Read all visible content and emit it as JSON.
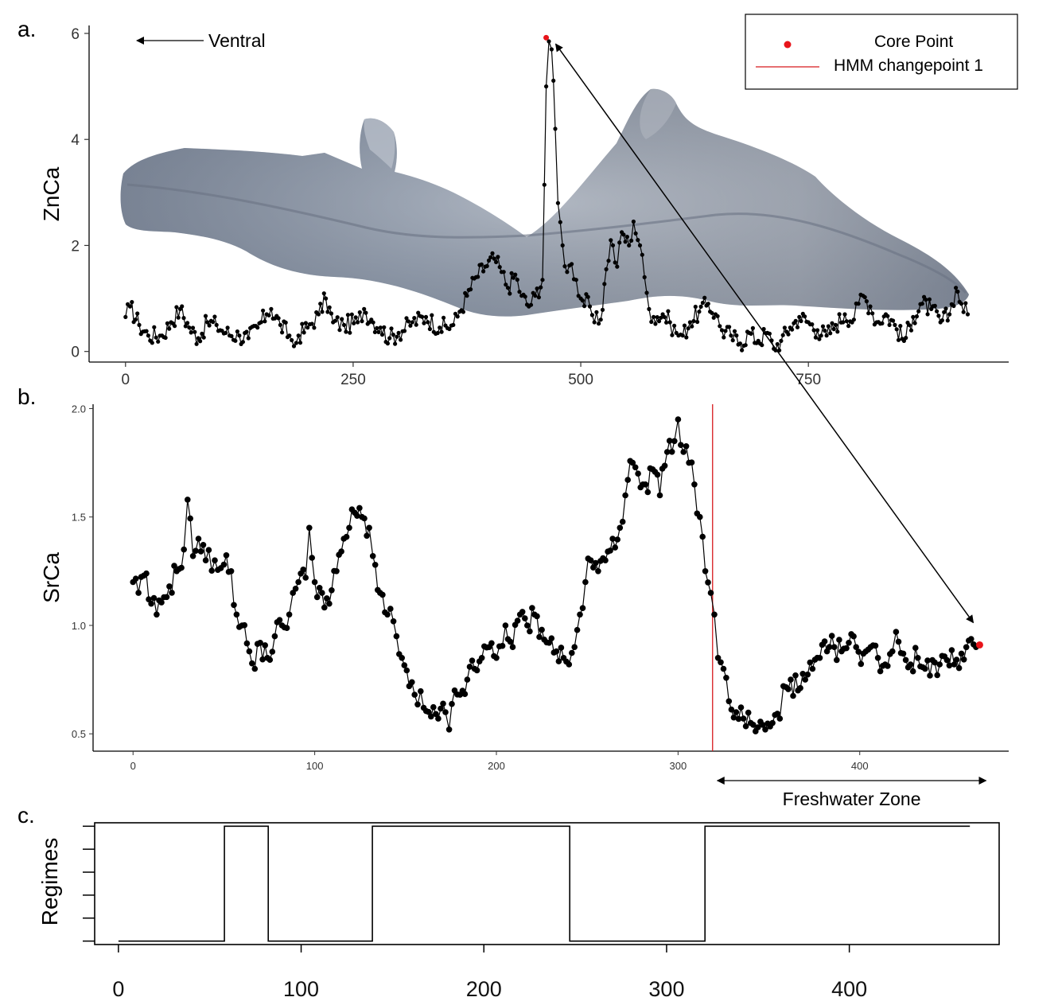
{
  "figure": {
    "panel_labels": [
      "a.",
      "b.",
      "c."
    ],
    "annotations": {
      "ventral": "Ventral",
      "freshwater_zone": "Freshwater Zone"
    },
    "legend": {
      "core_point": "Core Point",
      "hmm_changepoint": "HMM changepoint 1"
    }
  },
  "colors": {
    "series": "#000000",
    "core_point": "#e8141a",
    "changepoint": "#d7191c",
    "otolith": "#8c98a8"
  },
  "chart_data": [
    {
      "type": "line",
      "panel": "a.",
      "ylabel": "ZnCa",
      "xlabel": "",
      "xlim": [
        -40,
        970
      ],
      "ylim": [
        -0.2,
        6.15
      ],
      "xticks": [
        0,
        250,
        500,
        750
      ],
      "yticks": [
        0,
        2,
        4,
        6
      ],
      "legend_position": "top-right",
      "background_image": "otolith-photo",
      "core_point": {
        "x": 462,
        "y": 5.92
      },
      "key_points": [
        [
          0,
          0.65
        ],
        [
          5,
          0.85
        ],
        [
          15,
          0.5
        ],
        [
          25,
          0.3
        ],
        [
          40,
          0.3
        ],
        [
          50,
          0.55
        ],
        [
          60,
          0.8
        ],
        [
          70,
          0.45
        ],
        [
          80,
          0.25
        ],
        [
          90,
          0.55
        ],
        [
          100,
          0.5
        ],
        [
          110,
          0.35
        ],
        [
          125,
          0.3
        ],
        [
          135,
          0.25
        ],
        [
          145,
          0.45
        ],
        [
          155,
          0.7
        ],
        [
          160,
          0.8
        ],
        [
          170,
          0.5
        ],
        [
          180,
          0.3
        ],
        [
          185,
          0.1
        ],
        [
          190,
          0.3
        ],
        [
          200,
          0.45
        ],
        [
          212,
          0.7
        ],
        [
          220,
          1.0
        ],
        [
          228,
          0.55
        ],
        [
          240,
          0.5
        ],
        [
          255,
          0.55
        ],
        [
          262,
          0.8
        ],
        [
          270,
          0.6
        ],
        [
          280,
          0.45
        ],
        [
          290,
          0.25
        ],
        [
          300,
          0.35
        ],
        [
          315,
          0.55
        ],
        [
          330,
          0.65
        ],
        [
          345,
          0.45
        ],
        [
          360,
          0.5
        ],
        [
          367,
          0.75
        ],
        [
          375,
          1.05
        ],
        [
          385,
          1.4
        ],
        [
          395,
          1.6
        ],
        [
          405,
          1.75
        ],
        [
          413,
          1.5
        ],
        [
          420,
          1.2
        ],
        [
          428,
          1.45
        ],
        [
          435,
          1.05
        ],
        [
          443,
          0.85
        ],
        [
          450,
          1.05
        ],
        [
          458,
          1.35
        ],
        [
          462,
          5.0
        ],
        [
          465,
          5.85
        ],
        [
          468,
          5.7
        ],
        [
          472,
          4.2
        ],
        [
          475,
          2.8
        ],
        [
          480,
          2.0
        ],
        [
          485,
          1.5
        ],
        [
          490,
          1.65
        ],
        [
          495,
          1.35
        ],
        [
          500,
          1.0
        ],
        [
          510,
          0.85
        ],
        [
          515,
          0.55
        ],
        [
          522,
          0.6
        ],
        [
          528,
          1.55
        ],
        [
          533,
          2.1
        ],
        [
          540,
          1.6
        ],
        [
          545,
          2.25
        ],
        [
          553,
          2.0
        ],
        [
          558,
          2.45
        ],
        [
          565,
          2.0
        ],
        [
          570,
          1.4
        ],
        [
          575,
          0.8
        ],
        [
          580,
          0.65
        ],
        [
          590,
          0.7
        ],
        [
          598,
          0.55
        ],
        [
          605,
          0.35
        ],
        [
          612,
          0.3
        ],
        [
          620,
          0.55
        ],
        [
          630,
          0.75
        ],
        [
          640,
          0.9
        ],
        [
          648,
          0.7
        ],
        [
          655,
          0.4
        ],
        [
          665,
          0.3
        ],
        [
          675,
          0.15
        ],
        [
          685,
          0.35
        ],
        [
          695,
          0.2
        ],
        [
          705,
          0.35
        ],
        [
          712,
          0.05
        ],
        [
          720,
          0.2
        ],
        [
          730,
          0.45
        ],
        [
          740,
          0.65
        ],
        [
          750,
          0.55
        ],
        [
          760,
          0.4
        ],
        [
          770,
          0.3
        ],
        [
          780,
          0.5
        ],
        [
          790,
          0.7
        ],
        [
          800,
          0.6
        ],
        [
          805,
          0.9
        ],
        [
          810,
          1.05
        ],
        [
          818,
          0.85
        ],
        [
          825,
          0.55
        ],
        [
          835,
          0.7
        ],
        [
          845,
          0.5
        ],
        [
          855,
          0.2
        ],
        [
          865,
          0.65
        ],
        [
          875,
          0.9
        ],
        [
          885,
          0.8
        ],
        [
          895,
          0.55
        ],
        [
          905,
          0.7
        ],
        [
          912,
          1.2
        ],
        [
          918,
          0.9
        ],
        [
          925,
          0.7
        ]
      ]
    },
    {
      "type": "line",
      "panel": "b.",
      "ylabel": "SrCa",
      "xlabel": "",
      "xlim": [
        -22,
        482
      ],
      "ylim": [
        0.42,
        2.02
      ],
      "xticks": [
        0,
        100,
        200,
        300,
        400
      ],
      "yticks": [
        0.5,
        1.0,
        1.5,
        2.0
      ],
      "changepoint_x": 319,
      "core_point": {
        "x": 466,
        "y": 0.91
      },
      "freshwater_zone_x": [
        319,
        466
      ],
      "key_points": [
        [
          0,
          1.2
        ],
        [
          3,
          1.15
        ],
        [
          6,
          1.23
        ],
        [
          10,
          1.1
        ],
        [
          13,
          1.05
        ],
        [
          17,
          1.13
        ],
        [
          20,
          1.18
        ],
        [
          24,
          1.25
        ],
        [
          28,
          1.35
        ],
        [
          30,
          1.58
        ],
        [
          33,
          1.32
        ],
        [
          36,
          1.4
        ],
        [
          40,
          1.3
        ],
        [
          45,
          1.3
        ],
        [
          50,
          1.28
        ],
        [
          54,
          1.25
        ],
        [
          57,
          1.05
        ],
        [
          60,
          1.0
        ],
        [
          64,
          0.88
        ],
        [
          67,
          0.8
        ],
        [
          70,
          0.92
        ],
        [
          74,
          0.85
        ],
        [
          78,
          0.95
        ],
        [
          82,
          1.0
        ],
        [
          86,
          1.05
        ],
        [
          88,
          1.15
        ],
        [
          91,
          1.2
        ],
        [
          95,
          1.22
        ],
        [
          97,
          1.45
        ],
        [
          100,
          1.2
        ],
        [
          104,
          1.15
        ],
        [
          108,
          1.1
        ],
        [
          112,
          1.25
        ],
        [
          116,
          1.4
        ],
        [
          119,
          1.45
        ],
        [
          122,
          1.52
        ],
        [
          126,
          1.5
        ],
        [
          130,
          1.45
        ],
        [
          132,
          1.32
        ],
        [
          136,
          1.15
        ],
        [
          140,
          1.05
        ],
        [
          145,
          0.95
        ],
        [
          148,
          0.85
        ],
        [
          152,
          0.72
        ],
        [
          155,
          0.68
        ],
        [
          160,
          0.62
        ],
        [
          164,
          0.58
        ],
        [
          168,
          0.57
        ],
        [
          172,
          0.6
        ],
        [
          174,
          0.52
        ],
        [
          177,
          0.7
        ],
        [
          180,
          0.68
        ],
        [
          184,
          0.75
        ],
        [
          188,
          0.8
        ],
        [
          192,
          0.85
        ],
        [
          196,
          0.9
        ],
        [
          200,
          0.85
        ],
        [
          205,
          1.0
        ],
        [
          209,
          0.9
        ],
        [
          213,
          1.05
        ],
        [
          217,
          1.0
        ],
        [
          221,
          1.05
        ],
        [
          225,
          0.98
        ],
        [
          229,
          0.92
        ],
        [
          233,
          0.88
        ],
        [
          237,
          0.85
        ],
        [
          240,
          0.82
        ],
        [
          243,
          0.9
        ],
        [
          246,
          1.05
        ],
        [
          249,
          1.2
        ],
        [
          252,
          1.3
        ],
        [
          256,
          1.25
        ],
        [
          260,
          1.3
        ],
        [
          264,
          1.4
        ],
        [
          268,
          1.45
        ],
        [
          271,
          1.6
        ],
        [
          275,
          1.75
        ],
        [
          278,
          1.7
        ],
        [
          282,
          1.65
        ],
        [
          286,
          1.72
        ],
        [
          290,
          1.6
        ],
        [
          294,
          1.8
        ],
        [
          298,
          1.85
        ],
        [
          300,
          1.95
        ],
        [
          303,
          1.8
        ],
        [
          306,
          1.75
        ],
        [
          309,
          1.65
        ],
        [
          312,
          1.5
        ],
        [
          315,
          1.25
        ],
        [
          318,
          1.15
        ],
        [
          320,
          1.05
        ],
        [
          322,
          0.85
        ],
        [
          325,
          0.8
        ],
        [
          328,
          0.65
        ],
        [
          332,
          0.6
        ],
        [
          336,
          0.57
        ],
        [
          340,
          0.55
        ],
        [
          344,
          0.53
        ],
        [
          348,
          0.52
        ],
        [
          352,
          0.55
        ],
        [
          356,
          0.57
        ],
        [
          358,
          0.72
        ],
        [
          362,
          0.75
        ],
        [
          366,
          0.7
        ],
        [
          370,
          0.75
        ],
        [
          374,
          0.8
        ],
        [
          378,
          0.85
        ],
        [
          382,
          0.88
        ],
        [
          386,
          0.9
        ],
        [
          390,
          0.88
        ],
        [
          394,
          0.92
        ],
        [
          398,
          0.9
        ],
        [
          402,
          0.87
        ],
        [
          406,
          0.9
        ],
        [
          410,
          0.85
        ],
        [
          414,
          0.82
        ],
        [
          418,
          0.88
        ],
        [
          420,
          0.97
        ],
        [
          424,
          0.87
        ],
        [
          428,
          0.82
        ],
        [
          432,
          0.85
        ],
        [
          436,
          0.8
        ],
        [
          440,
          0.84
        ],
        [
          444,
          0.82
        ],
        [
          448,
          0.84
        ],
        [
          452,
          0.82
        ],
        [
          456,
          0.87
        ],
        [
          460,
          0.93
        ],
        [
          464,
          0.9
        ],
        [
          466,
          0.91
        ]
      ]
    },
    {
      "type": "line",
      "panel": "c.",
      "ylabel": "Regimes",
      "xlabel": "",
      "xlim": [
        -13,
        482
      ],
      "ylim": [
        0.85,
        6.15
      ],
      "xticks": [
        0,
        100,
        200,
        300,
        400
      ],
      "yticks": [
        1,
        2,
        3,
        4,
        5,
        6
      ],
      "segments": [
        {
          "x0": 0,
          "x1": 58,
          "regime": 1
        },
        {
          "x0": 58,
          "x1": 82,
          "regime": 6
        },
        {
          "x0": 82,
          "x1": 139,
          "regime": 1
        },
        {
          "x0": 139,
          "x1": 247,
          "regime": 6
        },
        {
          "x0": 247,
          "x1": 321,
          "regime": 1
        },
        {
          "x0": 321,
          "x1": 466,
          "regime": 6
        }
      ]
    }
  ]
}
